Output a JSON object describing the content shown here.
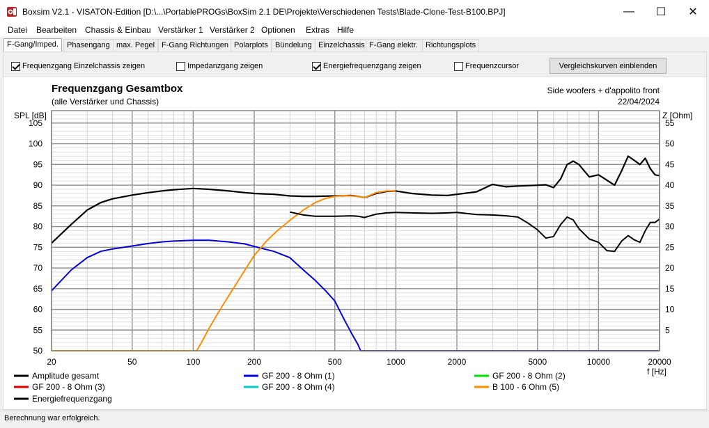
{
  "window": {
    "title": "Boxsim V2.1 - VISATON-Edition [D:\\...\\PortablePROGs\\BoxSim 2.1 DE\\Projekte\\Verschiedenen Tests\\Blade-Clone-Test-B100.BPJ]",
    "minimize": "—",
    "maximize": "☐",
    "close": "✕"
  },
  "menu": [
    "Datei",
    "Bearbeiten",
    "Chassis & Einbau",
    "Verstärker 1",
    "Verstärker 2",
    "Optionen",
    "Extras",
    "Hilfe"
  ],
  "tabs": [
    "F-Gang/Imped.",
    "Phasengang",
    "max. Pegel",
    "F-Gang Richtungen",
    "Polarplots",
    "Bündelung",
    "Einzelchassis",
    "F-Gang elektr.",
    "Richtungsplots"
  ],
  "active_tab": 0,
  "options": [
    {
      "label": "Frequenzgang Einzelchassis zeigen",
      "checked": true
    },
    {
      "label": "Impedanzgang zeigen",
      "checked": false
    },
    {
      "label": "Energiefrequenzgang zeigen",
      "checked": true
    },
    {
      "label": "Frequenzcursor",
      "checked": false
    }
  ],
  "compare_button": "Vergleichskurven einblenden",
  "status": "Berechnung war erfolgreich.",
  "colors": {
    "black": "#000000",
    "blue": "#0000e0",
    "green": "#00e000",
    "red": "#e00000",
    "cyan": "#00c8c8",
    "orange": "#ff8c00"
  },
  "chart_data": {
    "type": "line",
    "title": "Frequenzgang Gesamtbox",
    "subtitle": "(alle Verstärker und Chassis)",
    "annotation": "Side woofers + d'appolito front",
    "date": "22/04/2024",
    "ylabel": "SPL [dB]",
    "y2label": "Z [Ohm]",
    "xlabel": "f [Hz]",
    "x_scale": "log",
    "xlim": [
      20,
      20000
    ],
    "ylim": [
      50,
      108
    ],
    "y2lim": [
      0,
      58
    ],
    "x_ticks": [
      20,
      50,
      100,
      200,
      500,
      1000,
      2000,
      5000,
      10000,
      20000
    ],
    "y_ticks": [
      50,
      55,
      60,
      65,
      70,
      75,
      80,
      85,
      90,
      95,
      100,
      105
    ],
    "y2_ticks": [
      5,
      10,
      15,
      20,
      25,
      30,
      35,
      40,
      45,
      50,
      55
    ],
    "grid": true,
    "legend_position": "bottom",
    "series": [
      {
        "name": "Amplitude gesamt",
        "color": "#000000",
        "width": 2.2,
        "x": [
          20,
          25,
          30,
          35,
          40,
          50,
          60,
          70,
          80,
          100,
          120,
          150,
          180,
          200,
          250,
          300,
          350,
          400,
          500,
          600,
          650,
          700,
          800,
          900,
          1000,
          1200,
          1500,
          1800,
          2000,
          2500,
          3000,
          3500,
          4000,
          4500,
          5000,
          5500,
          6000,
          6500,
          7000,
          7500,
          8000,
          9000,
          10000,
          11000,
          12000,
          13000,
          14000,
          15000,
          16000,
          17000,
          18000,
          19000,
          20000
        ],
        "y": [
          76,
          80.5,
          84,
          85.8,
          86.7,
          87.6,
          88.2,
          88.6,
          88.9,
          89.2,
          89,
          88.6,
          88.2,
          88,
          87.8,
          87.4,
          87.3,
          87.3,
          87.4,
          87.5,
          87.3,
          87,
          88,
          88.5,
          88.6,
          88,
          87.6,
          87.5,
          87.8,
          88.4,
          90.2,
          89.6,
          89.8,
          89.9,
          90,
          90.1,
          89.4,
          91.5,
          95,
          95.8,
          95,
          92,
          92.5,
          91.2,
          90,
          93.5,
          97,
          96,
          95,
          96.5,
          94,
          92.5,
          92.3
        ]
      },
      {
        "name": "GF 200 - 8 Ohm (1)",
        "color": "#0000e0",
        "width": 2,
        "x": [
          20,
          25,
          30,
          35,
          40,
          50,
          60,
          70,
          80,
          100,
          120,
          150,
          180,
          200,
          250,
          300,
          350,
          400,
          450,
          500,
          550,
          600,
          650,
          670,
          700,
          800,
          1000,
          2000,
          5000,
          10000,
          20000
        ],
        "y": [
          64.5,
          69.5,
          72.5,
          74,
          74.6,
          75.3,
          75.9,
          76.3,
          76.5,
          76.7,
          76.7,
          76.3,
          75.8,
          75.2,
          74,
          72.5,
          69.5,
          67,
          64.5,
          62,
          58,
          54.5,
          51.5,
          50,
          50,
          50,
          50,
          50,
          50,
          50,
          50
        ]
      },
      {
        "name": "GF 200 - 8 Ohm (2)",
        "color": "#00e000",
        "width": 1.5,
        "x": [],
        "y": []
      },
      {
        "name": "GF 200 - 8 Ohm (3)",
        "color": "#e00000",
        "width": 1.5,
        "x": [],
        "y": []
      },
      {
        "name": "GF 200 - 8 Ohm (4)",
        "color": "#00c8c8",
        "width": 1.5,
        "x": [],
        "y": []
      },
      {
        "name": "B 100 - 6 Ohm (5)",
        "color": "#ff8c00",
        "width": 2,
        "x": [
          20,
          50,
          80,
          104,
          110,
          120,
          140,
          160,
          180,
          200,
          230,
          260,
          300,
          350,
          400,
          450,
          500,
          550,
          600,
          650,
          700,
          750,
          800,
          900,
          1000
        ],
        "y": [
          50,
          50,
          50,
          50,
          52,
          55.5,
          61,
          65.5,
          69.5,
          73,
          76.5,
          79,
          81.5,
          84,
          85.8,
          86.8,
          87.3,
          87.5,
          87.4,
          87.3,
          87,
          87.6,
          88.2,
          88.6,
          88.6
        ]
      },
      {
        "name": "Energiefrequenzgang",
        "color": "#000000",
        "width": 2,
        "x": [
          300,
          350,
          400,
          500,
          600,
          650,
          700,
          800,
          900,
          1000,
          1200,
          1500,
          1800,
          2000,
          2500,
          3000,
          3500,
          4000,
          4500,
          5000,
          5500,
          6000,
          6500,
          7000,
          7500,
          8000,
          9000,
          10000,
          11000,
          12000,
          13000,
          14000,
          15000,
          16000,
          17000,
          18000,
          19000,
          20000
        ],
        "y": [
          83.5,
          82.8,
          82.5,
          82.5,
          82.6,
          82.5,
          82.2,
          83,
          83.3,
          83.4,
          83.3,
          83.2,
          83.3,
          83.4,
          82.9,
          82.8,
          82.6,
          82.3,
          80.8,
          79.2,
          77.2,
          77.6,
          80.5,
          82.3,
          81.6,
          79.5,
          77,
          76.2,
          74.2,
          74,
          76.5,
          77.8,
          76.8,
          76.2,
          79,
          81,
          81,
          81.8
        ]
      }
    ]
  }
}
